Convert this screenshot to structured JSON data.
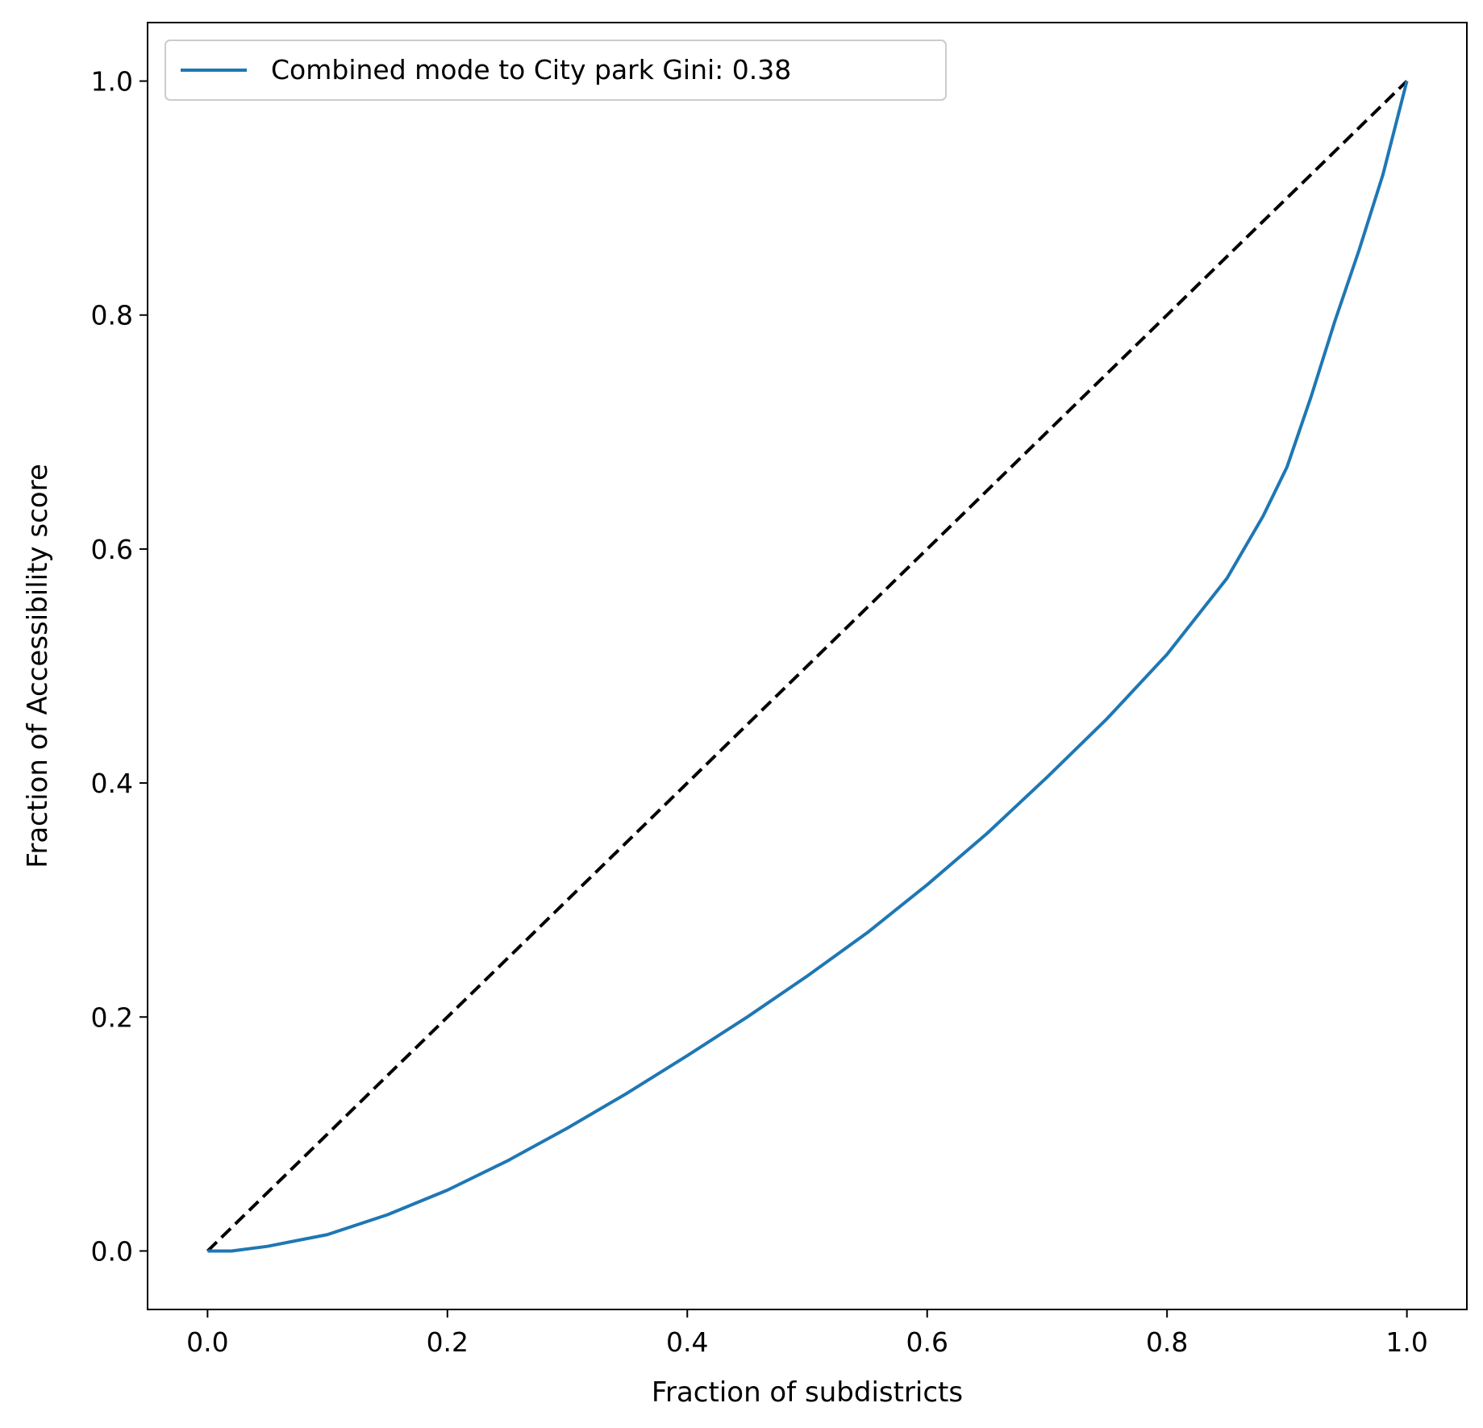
{
  "chart_data": {
    "type": "line",
    "title": "",
    "xlabel": "Fraction of subdistricts",
    "ylabel": "Fraction of Accessibility score",
    "xlim": [
      -0.05,
      1.05
    ],
    "ylim": [
      -0.05,
      1.05
    ],
    "xticks": [
      "0.0",
      "0.2",
      "0.4",
      "0.6",
      "0.8",
      "1.0"
    ],
    "yticks": [
      "0.0",
      "0.2",
      "0.4",
      "0.6",
      "0.8",
      "1.0"
    ],
    "grid": false,
    "legend_position": "upper-left",
    "series": [
      {
        "name": "Combined mode to City park Gini: 0.38",
        "color": "#1f77b4",
        "style": "solid",
        "x": [
          0.0,
          0.02,
          0.05,
          0.1,
          0.15,
          0.2,
          0.25,
          0.3,
          0.35,
          0.4,
          0.45,
          0.5,
          0.55,
          0.6,
          0.65,
          0.7,
          0.75,
          0.8,
          0.85,
          0.88,
          0.9,
          0.92,
          0.94,
          0.96,
          0.98,
          1.0
        ],
        "y": [
          0.0,
          0.0,
          0.004,
          0.014,
          0.031,
          0.052,
          0.077,
          0.105,
          0.135,
          0.167,
          0.2,
          0.235,
          0.272,
          0.313,
          0.357,
          0.405,
          0.455,
          0.51,
          0.575,
          0.628,
          0.67,
          0.73,
          0.795,
          0.855,
          0.92,
          1.0
        ]
      },
      {
        "name": "",
        "color": "#000000",
        "style": "dashed",
        "x": [
          0.0,
          1.0
        ],
        "y": [
          0.0,
          1.0
        ]
      }
    ]
  }
}
